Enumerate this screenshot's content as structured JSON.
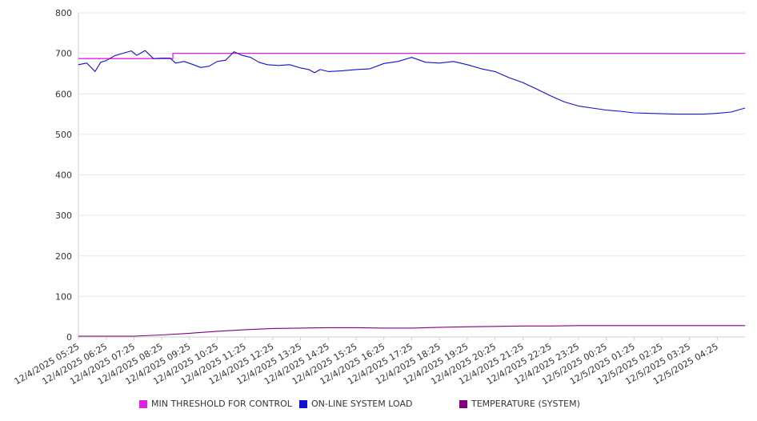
{
  "chart_data": {
    "type": "line",
    "title": "",
    "xlabel": "",
    "ylabel": "",
    "ylim": [
      0,
      800
    ],
    "yticks": [
      0,
      100,
      200,
      300,
      400,
      500,
      600,
      700,
      800
    ],
    "xtick_labels": [
      "12/4/2025 05:25",
      "12/4/2025 06:25",
      "12/4/2025 07:25",
      "12/4/2025 08:25",
      "12/4/2025 09:25",
      "12/4/2025 10:25",
      "12/4/2025 11:25",
      "12/4/2025 12:25",
      "12/4/2025 13:25",
      "12/4/2025 14:25",
      "12/4/2025 15:25",
      "12/4/2025 16:25",
      "12/4/2025 17:25",
      "12/4/2025 18:25",
      "12/4/2025 19:25",
      "12/4/2025 20:25",
      "12/4/2025 21:25",
      "12/4/2025 22:25",
      "12/4/2025 23:25",
      "12/5/2025 00:25",
      "12/5/2025 01:25",
      "12/5/2025 02:25",
      "12/5/2025 03:25",
      "12/5/2025 04:25"
    ],
    "x_hours": [
      0,
      1,
      2,
      3,
      3.4,
      4,
      5,
      6,
      7,
      8,
      9,
      10,
      11,
      12,
      13,
      14,
      15,
      16,
      17,
      18,
      19,
      20,
      21,
      22,
      23,
      24
    ],
    "grid": "horizontal",
    "legend_position": "bottom",
    "series": [
      {
        "name": "MIN THRESHOLD FOR CONTROL",
        "color": "#e020e0",
        "x": [
          0,
          3.4,
          3.4,
          24
        ],
        "values": [
          687,
          687,
          700,
          700
        ]
      },
      {
        "name": "ON-LINE SYSTEM LOAD",
        "color": "#1010d0",
        "x": [
          0,
          0.3,
          0.6,
          0.8,
          1.0,
          1.3,
          1.6,
          1.9,
          2.1,
          2.4,
          2.7,
          3.0,
          3.3,
          3.5,
          3.8,
          4.1,
          4.4,
          4.7,
          5.0,
          5.3,
          5.6,
          5.9,
          6.2,
          6.5,
          6.8,
          7.2,
          7.6,
          8.0,
          8.3,
          8.5,
          8.7,
          9.0,
          9.5,
          10.0,
          10.5,
          11.0,
          11.5,
          12.0,
          12.5,
          13.0,
          13.5,
          14.0,
          14.5,
          15.0,
          15.5,
          16.0,
          16.5,
          17.0,
          17.5,
          18.0,
          18.5,
          19.0,
          19.5,
          20.0,
          20.5,
          21.0,
          21.5,
          22.0,
          22.5,
          23.0,
          23.5,
          24.0
        ],
        "values": [
          672,
          676,
          655,
          678,
          682,
          694,
          700,
          706,
          695,
          707,
          687,
          688,
          688,
          676,
          680,
          673,
          665,
          668,
          680,
          683,
          704,
          695,
          690,
          678,
          672,
          670,
          672,
          664,
          660,
          652,
          660,
          655,
          657,
          660,
          662,
          675,
          680,
          690,
          678,
          676,
          680,
          672,
          662,
          655,
          640,
          628,
          612,
          595,
          580,
          570,
          565,
          560,
          557,
          553,
          552,
          551,
          550,
          550,
          550,
          552,
          555,
          565
        ]
      },
      {
        "name": "TEMPERATURE (SYSTEM)",
        "color": "#800080",
        "x": [
          0,
          2,
          3,
          4,
          5,
          6,
          7,
          8,
          9,
          10,
          11,
          12,
          13,
          14,
          15,
          16,
          17,
          18,
          19,
          20,
          21,
          22,
          23,
          24
        ],
        "values": [
          2,
          2,
          5,
          9,
          14,
          18,
          21,
          22,
          23,
          23,
          22,
          22,
          24,
          25,
          26,
          27,
          27,
          28,
          28,
          28,
          28,
          28,
          28,
          28
        ]
      }
    ]
  }
}
